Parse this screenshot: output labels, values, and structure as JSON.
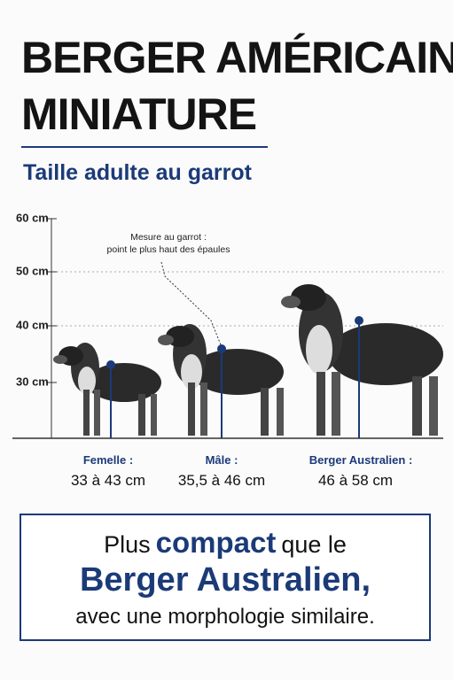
{
  "header": {
    "title_lines": [
      "BERGER AMÉRICAIN",
      "MINIATURE"
    ],
    "subtitle": "Taille adulte au garrot"
  },
  "scale": {
    "ticks": [
      "60 cm",
      "50 cm",
      "40 cm",
      "30 cm"
    ],
    "annotation": [
      "Mesure au garrot :",
      "point le plus haut des épaules"
    ]
  },
  "dogs": [
    {
      "label": "Femelle :",
      "size": "33 à 43 cm"
    },
    {
      "label": "Mâle :",
      "size": "35,5 à 46 cm"
    },
    {
      "label": "Berger Australien :",
      "size": "46 à 58 cm"
    }
  ],
  "callout": {
    "line1": [
      "Plus",
      "compact",
      "que le"
    ],
    "line2": "Berger Australien,",
    "line3": "avec une morphologie similaire."
  }
}
